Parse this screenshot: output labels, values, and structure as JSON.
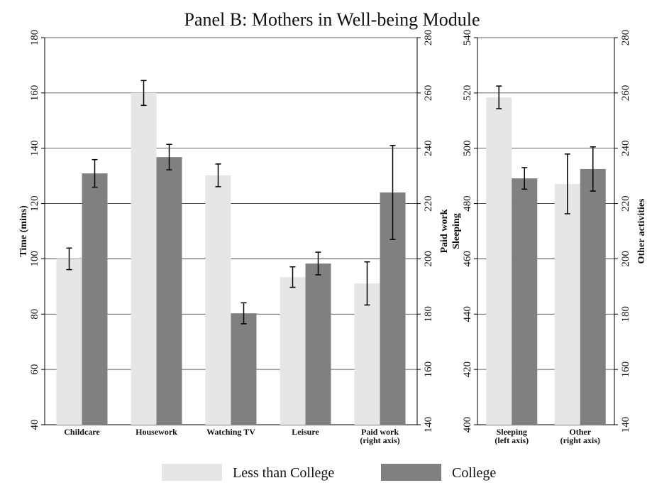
{
  "title": "Panel B: Mothers in Well-being Module",
  "chart_data": [
    {
      "type": "bar",
      "ylabel": "Time (mins)",
      "y2label": "Paid work",
      "categories": [
        [
          "Childcare"
        ],
        [
          "Housework"
        ],
        [
          "Watching TV"
        ],
        [
          "Leisure"
        ],
        [
          "Paid work",
          "(right axis)"
        ]
      ],
      "category_axis": [
        "y",
        "y",
        "y",
        "y",
        "y2"
      ],
      "ylim": [
        40,
        180
      ],
      "yticks": [
        40,
        60,
        80,
        100,
        120,
        140,
        160,
        180
      ],
      "y2lim": [
        140,
        280
      ],
      "y2ticks": [
        140,
        160,
        180,
        200,
        220,
        240,
        260,
        280
      ],
      "grid": true,
      "series": [
        {
          "name": "Less than College",
          "color": "#e6e6e6",
          "values": [
            100,
            160,
            130.2,
            93.4,
            191.1
          ],
          "errors": [
            3.9,
            4.5,
            4.1,
            3.7,
            7.8
          ]
        },
        {
          "name": "College",
          "color": "#808080",
          "values": [
            130.9,
            136.8,
            80.3,
            98.3,
            224
          ],
          "errors": [
            5,
            4.6,
            3.8,
            4.1,
            17
          ]
        }
      ]
    },
    {
      "type": "bar",
      "ylabel": "Sleeping",
      "y2label": "Other activities",
      "categories": [
        [
          "Sleeping",
          "(left axis)"
        ],
        [
          "Other",
          "(right axis)"
        ]
      ],
      "category_axis": [
        "y",
        "y2"
      ],
      "ylim": [
        400,
        540
      ],
      "yticks": [
        400,
        420,
        440,
        460,
        480,
        500,
        520,
        540
      ],
      "y2lim": [
        140,
        280
      ],
      "y2ticks": [
        140,
        160,
        180,
        200,
        220,
        240,
        260,
        280
      ],
      "grid": true,
      "series": [
        {
          "color": "#e6e6e6",
          "values": [
            518.4,
            227.1
          ],
          "errors": [
            4.1,
            10.8
          ]
        },
        {
          "color": "#808080",
          "values": [
            489.1,
            232.5
          ],
          "errors": [
            3.9,
            8
          ]
        }
      ]
    }
  ]
}
